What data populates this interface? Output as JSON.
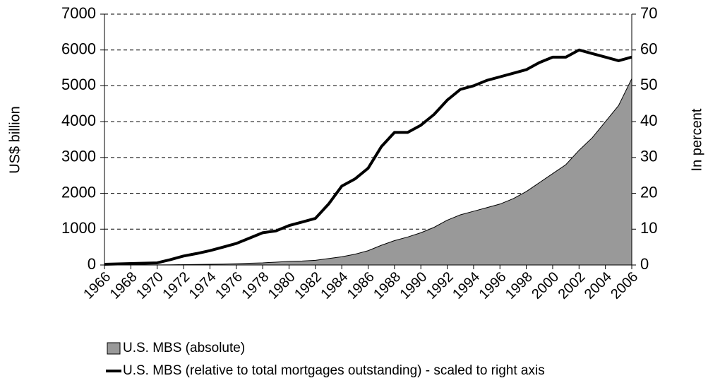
{
  "chart_data": {
    "type": "area_line",
    "x": [
      1966,
      1967,
      1968,
      1969,
      1970,
      1971,
      1972,
      1973,
      1974,
      1975,
      1976,
      1977,
      1978,
      1979,
      1980,
      1981,
      1982,
      1983,
      1984,
      1985,
      1986,
      1987,
      1988,
      1989,
      1990,
      1991,
      1992,
      1993,
      1994,
      1995,
      1996,
      1997,
      1998,
      1999,
      2000,
      2001,
      2002,
      2003,
      2004,
      2005,
      2006
    ],
    "series": [
      {
        "name": "U.S. MBS (absolute)",
        "color": "#999999",
        "kind": "area",
        "values": [
          0,
          0,
          0,
          0,
          3,
          5,
          10,
          15,
          20,
          25,
          35,
          50,
          60,
          80,
          100,
          110,
          130,
          180,
          230,
          300,
          400,
          550,
          680,
          780,
          900,
          1050,
          1250,
          1400,
          1500,
          1600,
          1700,
          1850,
          2050,
          2300,
          2550,
          2800,
          3200,
          3550,
          4000,
          4450,
          5200
        ]
      },
      {
        "name": "U.S. MBS (relative to total mortgages outstanding) - scaled to right axis",
        "color": "#000000",
        "kind": "line",
        "axis": "y2",
        "values": [
          0.2,
          0.3,
          0.4,
          0.5,
          0.6,
          1.5,
          2.5,
          3.2,
          4,
          5,
          6,
          7.5,
          9,
          9.5,
          11,
          12,
          13,
          17,
          22,
          24,
          27,
          33,
          37,
          37,
          39,
          42,
          46,
          49,
          50,
          51.5,
          52.5,
          53.5,
          54.5,
          56.5,
          58,
          58,
          60,
          59,
          58,
          57,
          58
        ]
      }
    ],
    "xlim": [
      1966,
      2006
    ],
    "xticks": [
      1966,
      1968,
      1970,
      1972,
      1974,
      1976,
      1978,
      1980,
      1982,
      1984,
      1986,
      1988,
      1990,
      1992,
      1994,
      1996,
      1998,
      2000,
      2002,
      2004,
      2006
    ],
    "ylim": [
      0,
      7000
    ],
    "yticks": [
      0,
      1000,
      2000,
      3000,
      4000,
      5000,
      6000,
      7000
    ],
    "y2lim": [
      0,
      70
    ],
    "y2ticks": [
      0,
      10,
      20,
      30,
      40,
      50,
      60,
      70
    ],
    "ylabel": "US$ billion",
    "y2label": "In percent",
    "grid": true
  }
}
